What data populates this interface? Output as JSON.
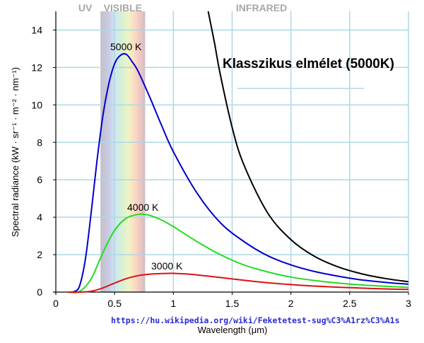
{
  "chart_data": {
    "type": "line",
    "title": "",
    "xlabel": "Wavelength (μm)",
    "ylabel": "Spectral radiance (kW · sr⁻¹ · m⁻² · nm⁻¹)",
    "xlim": [
      0,
      3
    ],
    "ylim": [
      0,
      15
    ],
    "grid": true,
    "x_ticks": [
      0,
      0.5,
      1,
      1.5,
      2,
      2.5,
      3
    ],
    "x_tick_labels": [
      "0",
      "0.5",
      "1",
      "1.5",
      "2",
      "2.5",
      "3"
    ],
    "y_ticks": [
      0,
      2,
      4,
      6,
      8,
      10,
      12,
      14
    ],
    "y_tick_labels": [
      "0",
      "2",
      "4",
      "6",
      "8",
      "10",
      "12",
      "14"
    ],
    "regions": [
      {
        "label": "UV",
        "from": 0,
        "to": 0.38
      },
      {
        "label": "VISIBLE",
        "from": 0.38,
        "to": 0.76
      },
      {
        "label": "INFRARED",
        "from": 0.76,
        "to": 3
      }
    ],
    "series": [
      {
        "name": "5000 K",
        "color": "#0000cc",
        "x": [
          0.1,
          0.15,
          0.2,
          0.25,
          0.3,
          0.35,
          0.4,
          0.45,
          0.5,
          0.55,
          0.6,
          0.65,
          0.7,
          0.8,
          0.9,
          1.0,
          1.2,
          1.4,
          1.6,
          1.8,
          2.0,
          2.2,
          2.4,
          2.6,
          2.8,
          3.0
        ],
        "y": [
          0.0,
          0.02,
          0.3,
          1.7,
          4.2,
          7.0,
          9.4,
          11.1,
          12.2,
          12.65,
          12.7,
          12.3,
          11.8,
          10.4,
          8.9,
          7.5,
          5.3,
          3.7,
          2.7,
          1.95,
          1.45,
          1.1,
          0.85,
          0.65,
          0.52,
          0.42
        ]
      },
      {
        "name": "4000 K",
        "color": "#22dd22",
        "x": [
          0.1,
          0.2,
          0.3,
          0.4,
          0.5,
          0.6,
          0.7,
          0.75,
          0.8,
          0.9,
          1.0,
          1.2,
          1.4,
          1.6,
          1.8,
          2.0,
          2.2,
          2.4,
          2.6,
          2.8,
          3.0
        ],
        "y": [
          0.0,
          0.03,
          0.7,
          2.1,
          3.3,
          3.95,
          4.15,
          4.15,
          4.1,
          3.85,
          3.5,
          2.7,
          2.0,
          1.45,
          1.08,
          0.8,
          0.62,
          0.48,
          0.38,
          0.31,
          0.25
        ]
      },
      {
        "name": "3000 K",
        "color": "#dd1111",
        "x": [
          0.1,
          0.2,
          0.3,
          0.4,
          0.5,
          0.6,
          0.7,
          0.8,
          0.9,
          0.97,
          1.0,
          1.1,
          1.2,
          1.4,
          1.6,
          1.8,
          2.0,
          2.2,
          2.4,
          2.6,
          2.8,
          3.0
        ],
        "y": [
          0.0,
          0.0,
          0.04,
          0.22,
          0.48,
          0.72,
          0.88,
          0.96,
          0.99,
          1.0,
          1.0,
          0.97,
          0.92,
          0.78,
          0.63,
          0.5,
          0.4,
          0.32,
          0.26,
          0.21,
          0.17,
          0.14
        ]
      },
      {
        "name": "Klasszikus elmélet (5000K)",
        "color": "#000000",
        "x": [
          1.296,
          1.35,
          1.4,
          1.5,
          1.6,
          1.8,
          2.0,
          2.2,
          2.4,
          2.6,
          2.8,
          3.0
        ],
        "y": [
          15.0,
          13.3,
          11.6,
          8.8,
          6.8,
          4.25,
          2.8,
          1.91,
          1.35,
          0.98,
          0.73,
          0.55
        ]
      }
    ]
  },
  "source_url": "https://hu.wikipedia.org/wiki/Feketetest-sug%C3%A1rz%C3%A1s"
}
